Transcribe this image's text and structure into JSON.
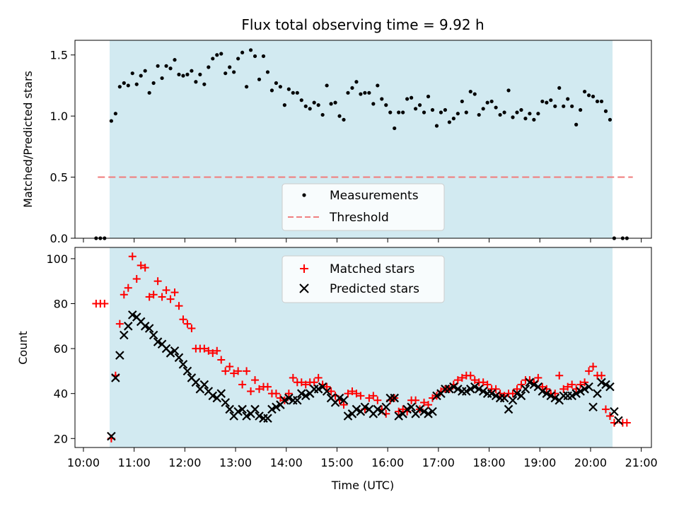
{
  "chart_data": [
    {
      "type": "scatter",
      "title": "Flux total observing time = 9.92 h",
      "xlabel": "",
      "ylabel": "Matched/Predicted stars",
      "xlim": [
        "09:50",
        "21:12"
      ],
      "ylim": [
        0,
        1.62
      ],
      "yticks": [
        0.0,
        0.5,
        1.0,
        1.5
      ],
      "ytick_labels": [
        "0.0",
        "0.5",
        "1.0",
        "1.5"
      ],
      "shaded_span": [
        "10:31",
        "20:26"
      ],
      "shaded_color": "#add8e6",
      "legend_position": "lower-center",
      "series": [
        {
          "name": "Measurements",
          "kind": "points",
          "color": "#000000",
          "x": [
            "10:15",
            "10:20",
            "10:25",
            "10:33",
            "10:38",
            "10:43",
            "10:48",
            "10:53",
            "10:58",
            "11:03",
            "11:08",
            "11:13",
            "11:18",
            "11:23",
            "11:28",
            "11:33",
            "11:38",
            "11:43",
            "11:48",
            "11:53",
            "11:58",
            "12:03",
            "12:08",
            "12:13",
            "12:18",
            "12:23",
            "12:28",
            "12:33",
            "12:38",
            "12:43",
            "12:48",
            "12:53",
            "12:58",
            "13:03",
            "13:08",
            "13:13",
            "13:18",
            "13:23",
            "13:28",
            "13:33",
            "13:38",
            "13:43",
            "13:48",
            "13:53",
            "13:58",
            "14:03",
            "14:08",
            "14:13",
            "14:18",
            "14:23",
            "14:28",
            "14:33",
            "14:38",
            "14:43",
            "14:48",
            "14:53",
            "14:58",
            "15:03",
            "15:08",
            "15:13",
            "15:18",
            "15:23",
            "15:28",
            "15:33",
            "15:38",
            "15:43",
            "15:48",
            "15:53",
            "15:58",
            "16:03",
            "16:08",
            "16:13",
            "16:18",
            "16:23",
            "16:28",
            "16:33",
            "16:38",
            "16:43",
            "16:48",
            "16:53",
            "16:58",
            "17:03",
            "17:08",
            "17:13",
            "17:18",
            "17:23",
            "17:28",
            "17:33",
            "17:38",
            "17:43",
            "17:48",
            "17:53",
            "17:58",
            "18:03",
            "18:08",
            "18:13",
            "18:18",
            "18:23",
            "18:28",
            "18:33",
            "18:38",
            "18:43",
            "18:48",
            "18:53",
            "18:58",
            "19:03",
            "19:08",
            "19:13",
            "19:18",
            "19:23",
            "19:28",
            "19:33",
            "19:38",
            "19:43",
            "19:48",
            "19:53",
            "19:58",
            "20:03",
            "20:08",
            "20:13",
            "20:18",
            "20:23",
            "20:28",
            "20:38",
            "20:43"
          ],
          "y": [
            0,
            0,
            0,
            0.96,
            1.02,
            1.24,
            1.27,
            1.25,
            1.35,
            1.26,
            1.33,
            1.37,
            1.19,
            1.27,
            1.41,
            1.31,
            1.41,
            1.39,
            1.46,
            1.34,
            1.33,
            1.34,
            1.37,
            1.28,
            1.34,
            1.26,
            1.4,
            1.47,
            1.5,
            1.51,
            1.35,
            1.4,
            1.36,
            1.47,
            1.52,
            1.24,
            1.54,
            1.49,
            1.3,
            1.49,
            1.36,
            1.21,
            1.27,
            1.24,
            1.09,
            1.22,
            1.19,
            1.19,
            1.13,
            1.08,
            1.06,
            1.11,
            1.09,
            1.01,
            1.25,
            1.1,
            1.11,
            1.0,
            0.97,
            1.19,
            1.23,
            1.28,
            1.18,
            1.19,
            1.19,
            1.1,
            1.25,
            1.14,
            1.09,
            1.03,
            0.9,
            1.03,
            1.03,
            1.14,
            1.15,
            1.06,
            1.09,
            1.03,
            1.16,
            1.05,
            0.92,
            1.03,
            1.05,
            0.95,
            0.98,
            1.02,
            1.12,
            1.03,
            1.2,
            1.18,
            1.01,
            1.06,
            1.11,
            1.12,
            1.07,
            1.01,
            1.03,
            1.21,
            0.99,
            1.03,
            1.05,
            0.98,
            1.02,
            0.97,
            1.02,
            1.12,
            1.11,
            1.13,
            1.08,
            1.23,
            1.08,
            1.14,
            1.08,
            0.93,
            1.05,
            1.2,
            1.17,
            1.16,
            1.12,
            1.12,
            1.04,
            0.97,
            0,
            0,
            0
          ]
        },
        {
          "name": "Threshold",
          "kind": "dashed-line",
          "color": "#f08080",
          "x": [
            "10:17",
            "20:50"
          ],
          "y": [
            0.5,
            0.5
          ]
        }
      ]
    },
    {
      "type": "scatter",
      "title": "",
      "xlabel": "Time (UTC)",
      "ylabel": "Count",
      "xlim": [
        "09:50",
        "21:12"
      ],
      "ylim": [
        16,
        105
      ],
      "yticks": [
        20,
        40,
        60,
        80,
        100
      ],
      "ytick_labels": [
        "20",
        "40",
        "60",
        "80",
        "100"
      ],
      "xticks": [
        "10:00",
        "11:00",
        "12:00",
        "13:00",
        "14:00",
        "15:00",
        "16:00",
        "17:00",
        "18:00",
        "19:00",
        "20:00",
        "21:00"
      ],
      "xtick_labels": [
        "10:00",
        "11:00",
        "12:00",
        "13:00",
        "14:00",
        "15:00",
        "16:00",
        "17:00",
        "18:00",
        "19:00",
        "20:00",
        "21:00"
      ],
      "shaded_span": [
        "10:31",
        "20:26"
      ],
      "shaded_color": "#add8e6",
      "legend_position": "upper-center",
      "series": [
        {
          "name": "Matched stars",
          "kind": "plus",
          "color": "#ff0000",
          "x": [
            "10:15",
            "10:20",
            "10:25",
            "10:33",
            "10:38",
            "10:43",
            "10:48",
            "10:53",
            "10:58",
            "11:03",
            "11:08",
            "11:13",
            "11:18",
            "11:23",
            "11:28",
            "11:33",
            "11:38",
            "11:43",
            "11:48",
            "11:53",
            "11:58",
            "12:03",
            "12:08",
            "12:13",
            "12:18",
            "12:23",
            "12:28",
            "12:33",
            "12:38",
            "12:43",
            "12:48",
            "12:53",
            "12:58",
            "13:03",
            "13:08",
            "13:13",
            "13:18",
            "13:23",
            "13:28",
            "13:33",
            "13:38",
            "13:43",
            "13:48",
            "13:53",
            "13:58",
            "14:03",
            "14:08",
            "14:13",
            "14:18",
            "14:23",
            "14:28",
            "14:33",
            "14:38",
            "14:43",
            "14:48",
            "14:53",
            "14:58",
            "15:03",
            "15:08",
            "15:13",
            "15:18",
            "15:23",
            "15:28",
            "15:33",
            "15:38",
            "15:43",
            "15:48",
            "15:53",
            "15:58",
            "16:03",
            "16:08",
            "16:13",
            "16:18",
            "16:23",
            "16:28",
            "16:33",
            "16:38",
            "16:43",
            "16:48",
            "16:53",
            "16:58",
            "17:03",
            "17:08",
            "17:13",
            "17:18",
            "17:23",
            "17:28",
            "17:33",
            "17:38",
            "17:43",
            "17:48",
            "17:53",
            "17:58",
            "18:03",
            "18:08",
            "18:13",
            "18:18",
            "18:23",
            "18:28",
            "18:33",
            "18:38",
            "18:43",
            "18:48",
            "18:53",
            "18:58",
            "19:03",
            "19:08",
            "19:13",
            "19:18",
            "19:23",
            "19:28",
            "19:33",
            "19:38",
            "19:43",
            "19:48",
            "19:53",
            "19:58",
            "20:03",
            "20:08",
            "20:13",
            "20:18",
            "20:23",
            "20:28",
            "20:38",
            "20:43"
          ],
          "y": [
            80,
            80,
            80,
            20,
            48,
            71,
            84,
            87,
            101,
            91,
            97,
            96,
            83,
            84,
            90,
            83,
            86,
            82,
            85,
            79,
            73,
            71,
            69,
            60,
            60,
            60,
            59,
            58,
            59,
            55,
            50,
            52,
            49,
            50,
            44,
            50,
            41,
            46,
            42,
            43,
            43,
            40,
            40,
            38,
            37,
            40,
            47,
            45,
            45,
            44,
            45,
            45,
            47,
            44,
            43,
            41,
            39,
            37,
            35,
            40,
            41,
            40,
            39,
            33,
            38,
            39,
            37,
            33,
            31,
            37,
            38,
            32,
            33,
            32,
            37,
            37,
            33,
            36,
            35,
            38,
            39,
            41,
            42,
            42,
            44,
            46,
            47,
            48,
            48,
            46,
            45,
            45,
            44,
            42,
            42,
            40,
            39,
            40,
            40,
            42,
            44,
            46,
            46,
            45,
            47,
            43,
            42,
            40,
            40,
            48,
            42,
            43,
            44,
            42,
            44,
            45,
            50,
            52,
            48,
            48,
            33,
            30,
            27,
            27,
            27
          ]
        },
        {
          "name": "Predicted stars",
          "kind": "x",
          "color": "#000000",
          "x": [
            "10:33",
            "10:38",
            "10:43",
            "10:48",
            "10:53",
            "10:58",
            "11:03",
            "11:08",
            "11:13",
            "11:18",
            "11:23",
            "11:28",
            "11:33",
            "11:38",
            "11:43",
            "11:48",
            "11:53",
            "11:58",
            "12:03",
            "12:08",
            "12:13",
            "12:18",
            "12:23",
            "12:28",
            "12:33",
            "12:38",
            "12:43",
            "12:48",
            "12:53",
            "12:58",
            "13:03",
            "13:08",
            "13:13",
            "13:18",
            "13:23",
            "13:28",
            "13:33",
            "13:38",
            "13:43",
            "13:48",
            "13:53",
            "13:58",
            "14:03",
            "14:08",
            "14:13",
            "14:18",
            "14:23",
            "14:28",
            "14:33",
            "14:38",
            "14:43",
            "14:48",
            "14:53",
            "14:58",
            "15:03",
            "15:08",
            "15:13",
            "15:18",
            "15:23",
            "15:28",
            "15:33",
            "15:38",
            "15:43",
            "15:48",
            "15:53",
            "15:58",
            "16:03",
            "16:08",
            "16:13",
            "16:18",
            "16:23",
            "16:28",
            "16:33",
            "16:38",
            "16:43",
            "16:48",
            "16:53",
            "16:58",
            "17:03",
            "17:08",
            "17:13",
            "17:18",
            "17:23",
            "17:28",
            "17:33",
            "17:38",
            "17:43",
            "17:48",
            "17:53",
            "17:58",
            "18:03",
            "18:08",
            "18:13",
            "18:18",
            "18:23",
            "18:28",
            "18:33",
            "18:38",
            "18:43",
            "18:48",
            "18:53",
            "18:58",
            "19:03",
            "19:08",
            "19:13",
            "19:18",
            "19:23",
            "19:28",
            "19:33",
            "19:38",
            "19:43",
            "19:48",
            "19:53",
            "19:58",
            "20:03",
            "20:08",
            "20:13",
            "20:18",
            "20:23",
            "20:28",
            "20:33"
          ],
          "y": [
            21,
            47,
            57,
            66,
            70,
            75,
            74,
            72,
            70,
            69,
            66,
            63,
            62,
            60,
            58,
            59,
            56,
            53,
            50,
            47,
            45,
            42,
            44,
            41,
            39,
            38,
            40,
            36,
            33,
            30,
            32,
            33,
            30,
            31,
            33,
            30,
            29,
            29,
            33,
            34,
            35,
            37,
            38,
            37,
            37,
            40,
            39,
            40,
            42,
            42,
            43,
            41,
            38,
            36,
            38,
            37,
            30,
            31,
            33,
            32,
            34,
            33,
            31,
            33,
            32,
            34,
            38,
            38,
            30,
            31,
            33,
            34,
            31,
            33,
            32,
            31,
            32,
            39,
            40,
            42,
            42,
            43,
            42,
            41,
            41,
            42,
            43,
            42,
            41,
            40,
            40,
            39,
            38,
            38,
            33,
            37,
            40,
            39,
            42,
            45,
            44,
            43,
            41,
            40,
            39,
            38,
            37,
            39,
            39,
            39,
            40,
            41,
            42,
            43,
            34,
            40,
            45,
            44,
            43,
            32,
            28
          ]
        }
      ]
    }
  ]
}
